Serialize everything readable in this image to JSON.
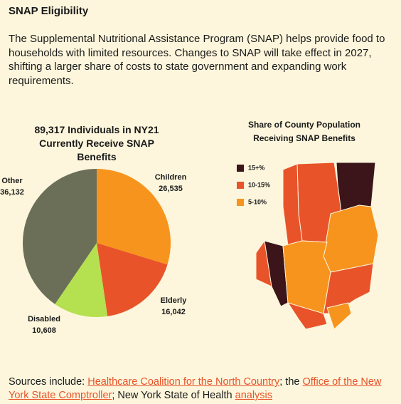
{
  "header": {
    "title": "SNAP Eligibility",
    "text": "The Supplemental Nutritional Assistance Program (SNAP) helps provide food to households with limited resources. Changes to SNAP will take effect in 2027, shifting a larger share of costs to state government and expanding work requirements."
  },
  "chart_data": {
    "type": "pie",
    "title": "89,317 Individuals in NY21 Currently Receive SNAP Benefits",
    "categories": [
      "Children",
      "Elderly",
      "Disabled",
      "Other"
    ],
    "values": [
      26535,
      16042,
      10608,
      36132
    ],
    "value_labels": [
      "26,535",
      "16,042",
      "10,608",
      "36,132"
    ],
    "colors": [
      "#f7941d",
      "#e8532a",
      "#b5e04f",
      "#6b6f58"
    ]
  },
  "map": {
    "title": "Share of County Population Receiving SNAP Benefits",
    "legend": [
      {
        "label": "15+%",
        "color": "#3b1519"
      },
      {
        "label": "10-15%",
        "color": "#e8532a"
      },
      {
        "label": "5-10%",
        "color": "#f7941d"
      }
    ]
  },
  "sources": [
    {
      "text": "Sources include: "
    },
    {
      "text": "Healthcare Coalition for the North Country",
      "link": true
    },
    {
      "text": "; the "
    },
    {
      "text": "Office of the New York State Comptroller",
      "link": true
    },
    {
      "text": "; New York State of Health "
    },
    {
      "text": "analysis",
      "link": true
    }
  ]
}
